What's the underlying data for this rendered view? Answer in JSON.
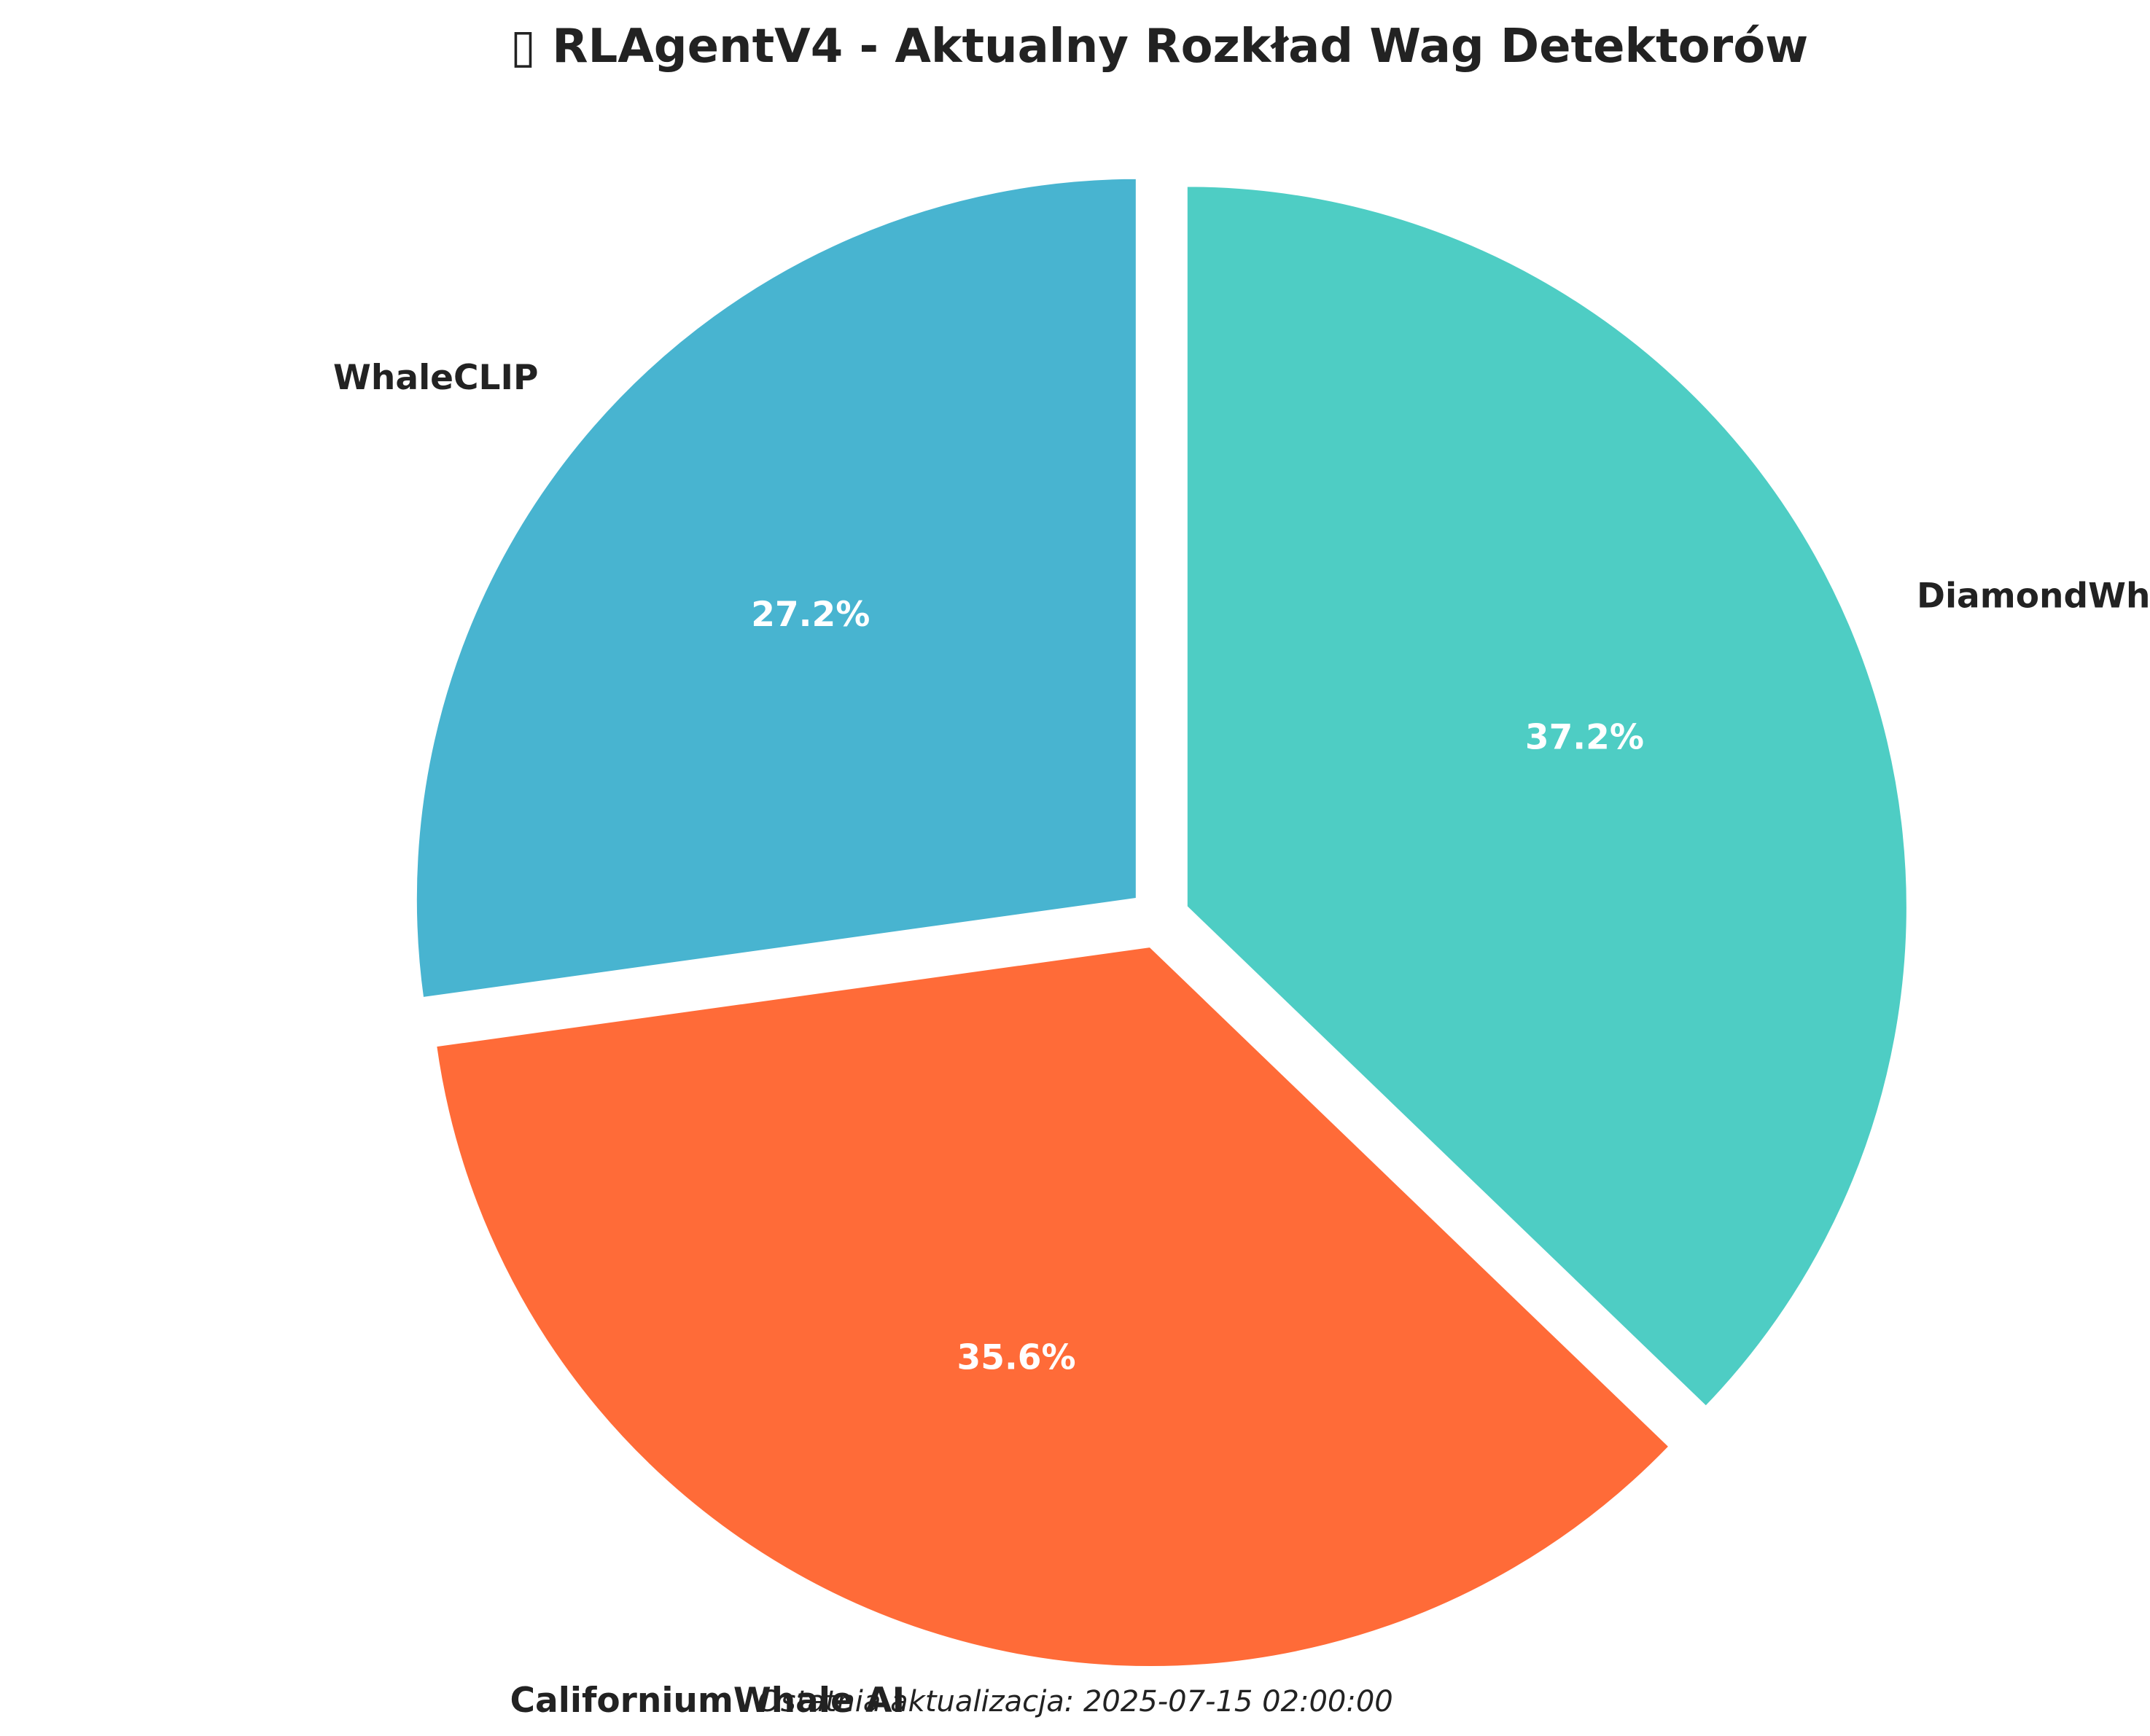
{
  "chart_data": {
    "type": "pie",
    "title": "▯ RLAgentV4 - Aktualny Rozkład Wag Detektorów",
    "categories": [
      "WhaleCLIP",
      "CaliforniumWhale AI",
      "DiamondWhale AI"
    ],
    "values": [
      27.2,
      35.6,
      37.2
    ],
    "labels": [
      "27.2%",
      "35.6%",
      "37.2%"
    ],
    "colors": [
      "#48B4D0",
      "#FF6B38",
      "#4ECDC4"
    ],
    "start_angle": "90° (top), counter-clockwise",
    "exploded": true,
    "legend": "none",
    "footer": "Ostatnia aktualizacja: 2025-07-15 02:00:00"
  }
}
